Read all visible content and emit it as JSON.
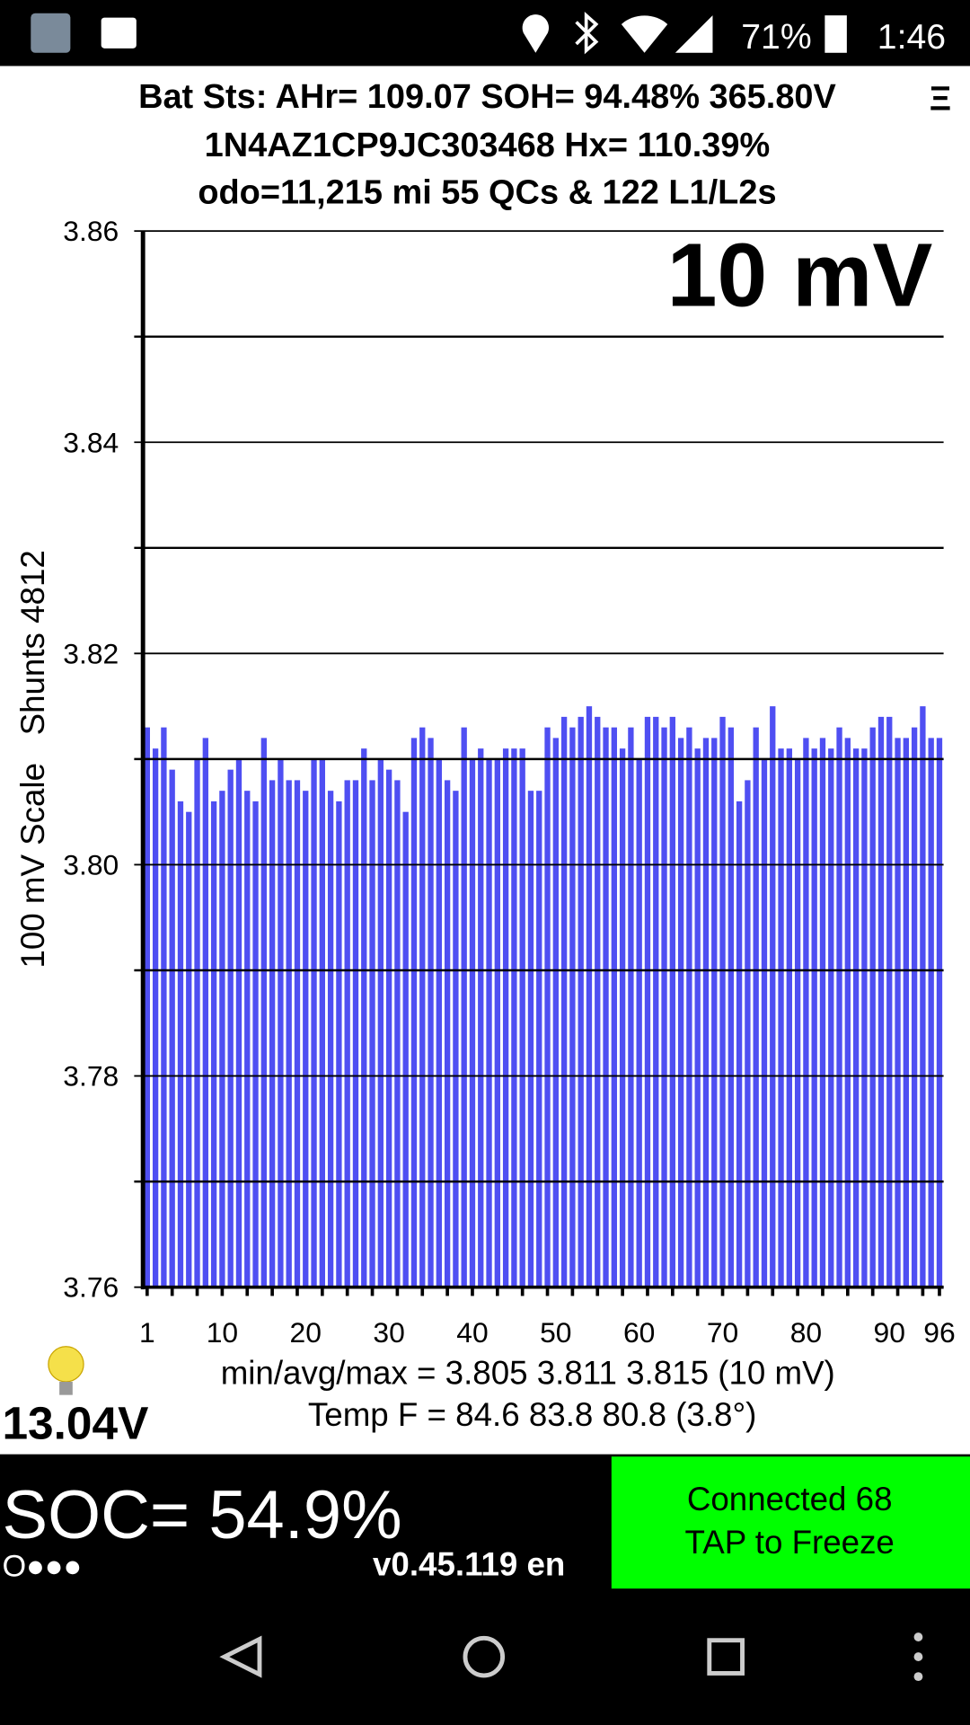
{
  "status_bar": {
    "battery": "71%",
    "time": "1:46"
  },
  "header": {
    "line1": "Bat Sts: AHr= 109.07 SOH= 94.48% 365.80V",
    "line2": "1N4AZ1CP9JC303468   Hx= 110.39%",
    "line3": "odo=11,215 mi 55 QCs & 122 L1/L2s",
    "menu": "Ξ"
  },
  "chart_data": {
    "type": "bar",
    "annotation": "10 mV",
    "y_label": "100 mV Scale   Shunts 4812",
    "color": "#4f4ff2",
    "x": [
      1,
      2,
      3,
      4,
      5,
      6,
      7,
      8,
      9,
      10,
      11,
      12,
      13,
      14,
      15,
      16,
      17,
      18,
      19,
      20,
      21,
      22,
      23,
      24,
      25,
      26,
      27,
      28,
      29,
      30,
      31,
      32,
      33,
      34,
      35,
      36,
      37,
      38,
      39,
      40,
      41,
      42,
      43,
      44,
      45,
      46,
      47,
      48,
      49,
      50,
      51,
      52,
      53,
      54,
      55,
      56,
      57,
      58,
      59,
      60,
      61,
      62,
      63,
      64,
      65,
      66,
      67,
      68,
      69,
      70,
      71,
      72,
      73,
      74,
      75,
      76,
      77,
      78,
      79,
      80,
      81,
      82,
      83,
      84,
      85,
      86,
      87,
      88,
      89,
      90,
      91,
      92,
      93,
      94,
      95,
      96
    ],
    "values": [
      3.813,
      3.811,
      3.813,
      3.809,
      3.806,
      3.805,
      3.81,
      3.812,
      3.806,
      3.807,
      3.809,
      3.81,
      3.807,
      3.806,
      3.812,
      3.808,
      3.81,
      3.808,
      3.808,
      3.807,
      3.81,
      3.81,
      3.807,
      3.806,
      3.808,
      3.808,
      3.811,
      3.808,
      3.81,
      3.809,
      3.808,
      3.805,
      3.812,
      3.813,
      3.812,
      3.81,
      3.808,
      3.807,
      3.813,
      3.81,
      3.811,
      3.81,
      3.81,
      3.811,
      3.811,
      3.811,
      3.807,
      3.807,
      3.813,
      3.812,
      3.814,
      3.813,
      3.814,
      3.815,
      3.814,
      3.813,
      3.813,
      3.811,
      3.813,
      3.81,
      3.814,
      3.814,
      3.813,
      3.814,
      3.812,
      3.813,
      3.811,
      3.812,
      3.812,
      3.814,
      3.813,
      3.806,
      3.808,
      3.813,
      3.81,
      3.815,
      3.811,
      3.811,
      3.81,
      3.812,
      3.811,
      3.812,
      3.811,
      3.813,
      3.812,
      3.811,
      3.811,
      3.813,
      3.814,
      3.814,
      3.812,
      3.812,
      3.813,
      3.815,
      3.812,
      3.812
    ],
    "xticks": [
      1,
      10,
      20,
      30,
      40,
      50,
      60,
      70,
      80,
      90,
      96
    ],
    "ylim": [
      3.76,
      3.86
    ],
    "yticks": [
      3.76,
      3.78,
      {
        "value": 3.8,
        "label": "3.80"
      },
      3.82,
      3.84,
      3.86
    ],
    "yticks_minor": [
      3.77,
      3.79,
      3.81,
      3.83,
      3.85
    ],
    "grid": true
  },
  "footer": {
    "stats": "min/avg/max = 3.805 3.811 3.815  (10 mV)",
    "temp": "Temp F = 84.6  83.8  80.8  (3.8°)",
    "voltage": "13.04V",
    "soc": "SOC= 54.9%",
    "dots": "O●●●",
    "version": "v0.45.119 en",
    "connected": "Connected 68",
    "tap": "TAP to Freeze"
  }
}
